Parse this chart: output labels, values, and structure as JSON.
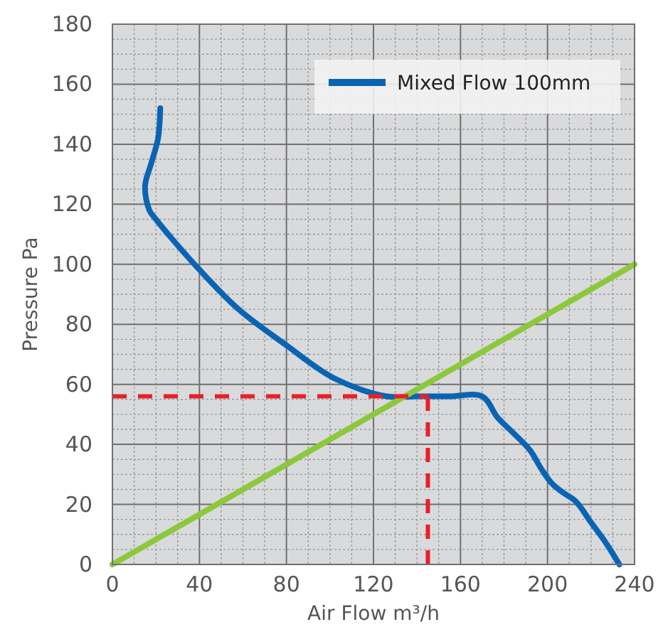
{
  "chart_data": {
    "type": "line",
    "xlabel": "Air Flow m³/h",
    "ylabel": "Pressure Pa",
    "xlim": [
      0,
      240
    ],
    "xticks": [
      0,
      40,
      80,
      120,
      160,
      200,
      240
    ],
    "ylim": [
      0,
      180
    ],
    "yticks": [
      0,
      20,
      40,
      60,
      80,
      100,
      120,
      140,
      160,
      180
    ],
    "grid": true,
    "legend": "top right",
    "line_style": "solid",
    "series": [
      {
        "name": "Mixed Flow 100mm",
        "color": "#0a64b4",
        "x": [
          22,
          21,
          18,
          15,
          17,
          20,
          28,
          39,
          58,
          80,
          102,
          126,
          140,
          155,
          170,
          177,
          184,
          192,
          197,
          202,
          207,
          213,
          220,
          227,
          233
        ],
        "values": [
          152,
          142,
          134,
          126,
          118,
          115,
          108,
          99,
          85,
          73,
          62,
          56,
          56,
          56,
          56,
          49,
          44,
          38,
          32,
          27,
          24,
          21,
          14,
          7,
          0
        ]
      },
      {
        "color": "#8cc83c",
        "x": [
          0,
          240
        ],
        "values": [
          0,
          100
        ]
      }
    ],
    "ref_lines": [
      {
        "axis": "y",
        "value": 56,
        "color": "#e8202a",
        "line_style": "dashed"
      },
      {
        "axis": "x",
        "value": 145,
        "color": "#e8202a",
        "line_style": "dashed"
      }
    ]
  }
}
